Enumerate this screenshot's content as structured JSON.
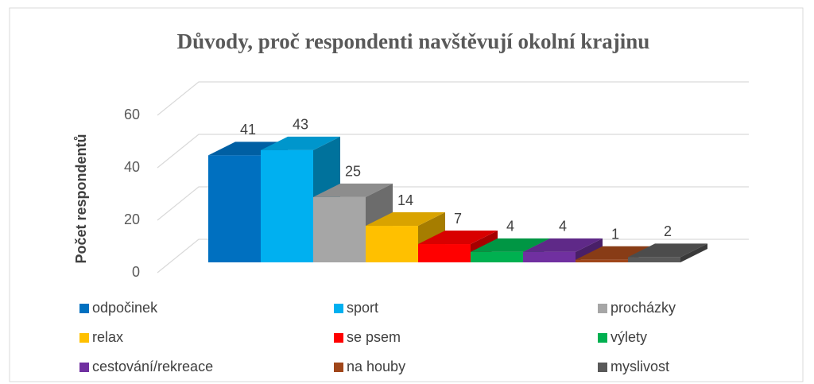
{
  "chart_data": {
    "type": "bar3d",
    "title": "Důvody, proč respondenti navštěvují okolní krajinu",
    "ylabel": "Počet respondentů",
    "categories": [
      "odpočinek",
      "sport",
      "procházky",
      "relax",
      "se psem",
      "výlety",
      "cestování/rekreace",
      "na houby",
      "myslivost"
    ],
    "values": [
      41,
      43,
      25,
      14,
      7,
      4,
      4,
      1,
      2
    ],
    "colors": [
      "#0070c0",
      "#00b0f0",
      "#a6a6a6",
      "#ffc000",
      "#ff0000",
      "#00b050",
      "#7030a0",
      "#a0461a",
      "#595959"
    ],
    "ylim": [
      0,
      60
    ],
    "yticks": [
      0,
      20,
      40,
      60
    ],
    "grid": true,
    "legend": "bottom"
  }
}
